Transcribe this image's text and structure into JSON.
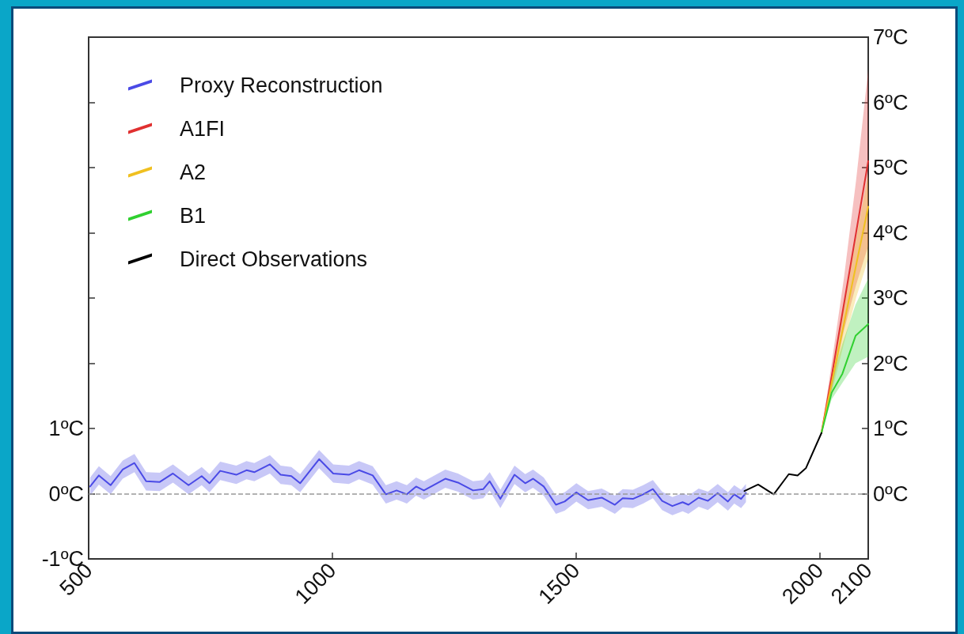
{
  "chart_data": {
    "type": "line",
    "xlim": [
      500,
      2100
    ],
    "xticks": [
      500,
      1000,
      1500,
      2000,
      2100
    ],
    "ylim": [
      -1,
      7
    ],
    "yticks": [
      {
        "value": -1,
        "label": "-1ºC"
      },
      {
        "value": 0,
        "label": "0ºC"
      },
      {
        "value": 1,
        "label": "1ºC"
      },
      {
        "value": 2,
        "label": null
      },
      {
        "value": 3,
        "label": null
      },
      {
        "value": 4,
        "label": null
      },
      {
        "value": 5,
        "label": null
      },
      {
        "value": 6,
        "label": null
      }
    ],
    "y2lim": [
      -1,
      7
    ],
    "y2ticks": [
      {
        "value": 0,
        "label": "0ºC"
      },
      {
        "value": 1,
        "label": "1ºC"
      },
      {
        "value": 2,
        "label": "2ºC"
      },
      {
        "value": 3,
        "label": "3ºC"
      },
      {
        "value": 4,
        "label": "4ºC"
      },
      {
        "value": 5,
        "label": "5ºC"
      },
      {
        "value": 6,
        "label": "6ºC"
      },
      {
        "value": 7,
        "label": "7ºC"
      }
    ],
    "grid": false,
    "legend": "top left",
    "marker": "none",
    "line_style": "solid",
    "ref_lines": [
      {
        "axis": "y",
        "value": 0,
        "color": "#999999",
        "line_style": "dashed"
      }
    ],
    "series": [
      {
        "name": "Proxy Reconstruction",
        "color": "#4a4ae6",
        "x": [
          503,
          521,
          545,
          570,
          594,
          618,
          646,
          673,
          705,
          732,
          748,
          770,
          803,
          824,
          840,
          872,
          894,
          916,
          934,
          973,
          1002,
          1034,
          1055,
          1083,
          1110,
          1132,
          1153,
          1172,
          1188,
          1232,
          1258,
          1289,
          1310,
          1323,
          1345,
          1374,
          1396,
          1412,
          1434,
          1459,
          1477,
          1501,
          1525,
          1553,
          1580,
          1596,
          1617,
          1638,
          1658,
          1677,
          1698,
          1719,
          1731,
          1752,
          1771,
          1791,
          1812,
          1825,
          1839,
          1849
        ],
        "values": [
          0.11,
          0.28,
          0.13,
          0.37,
          0.47,
          0.19,
          0.18,
          0.31,
          0.13,
          0.27,
          0.16,
          0.35,
          0.29,
          0.36,
          0.33,
          0.45,
          0.29,
          0.27,
          0.16,
          0.53,
          0.31,
          0.29,
          0.36,
          0.28,
          -0.01,
          0.05,
          -0.01,
          0.11,
          0.05,
          0.23,
          0.17,
          0.05,
          0.07,
          0.19,
          -0.08,
          0.29,
          0.16,
          0.23,
          0.11,
          -0.17,
          -0.12,
          0.02,
          -0.1,
          -0.06,
          -0.17,
          -0.07,
          -0.08,
          -0.01,
          0.07,
          -0.11,
          -0.19,
          -0.13,
          -0.17,
          -0.06,
          -0.11,
          0.01,
          -0.12,
          -0.01,
          -0.08,
          0.01
        ],
        "lower": [
          -0.03,
          0.14,
          -0.01,
          0.23,
          0.33,
          0.05,
          0.04,
          0.17,
          -0.01,
          0.13,
          0.02,
          0.21,
          0.15,
          0.22,
          0.19,
          0.31,
          0.15,
          0.13,
          0.02,
          0.39,
          0.17,
          0.15,
          0.22,
          0.14,
          -0.15,
          -0.09,
          -0.15,
          -0.03,
          -0.09,
          0.09,
          0.03,
          -0.09,
          -0.07,
          0.05,
          -0.22,
          0.15,
          0.02,
          0.09,
          -0.03,
          -0.31,
          -0.26,
          -0.12,
          -0.24,
          -0.2,
          -0.31,
          -0.21,
          -0.22,
          -0.15,
          -0.07,
          -0.25,
          -0.33,
          -0.27,
          -0.31,
          -0.2,
          -0.25,
          -0.13,
          -0.26,
          -0.15,
          -0.22,
          -0.13
        ],
        "upper": [
          0.25,
          0.42,
          0.27,
          0.51,
          0.61,
          0.33,
          0.32,
          0.45,
          0.27,
          0.41,
          0.3,
          0.49,
          0.43,
          0.5,
          0.47,
          0.59,
          0.43,
          0.41,
          0.3,
          0.67,
          0.45,
          0.43,
          0.5,
          0.42,
          0.13,
          0.19,
          0.13,
          0.25,
          0.19,
          0.37,
          0.31,
          0.19,
          0.21,
          0.33,
          0.06,
          0.43,
          0.3,
          0.37,
          0.25,
          -0.03,
          0.02,
          0.16,
          0.04,
          0.08,
          -0.03,
          0.07,
          0.06,
          0.13,
          0.21,
          0.03,
          -0.05,
          0.01,
          -0.03,
          0.08,
          0.03,
          0.15,
          0.02,
          0.13,
          0.06,
          0.15
        ]
      },
      {
        "name": "A1FI",
        "color": "#e03030",
        "x": [
          2004,
          2025,
          2050,
          2075,
          2100
        ],
        "values": [
          0.93,
          1.8,
          2.9,
          4.0,
          5.1
        ],
        "lower": [
          0.93,
          1.6,
          2.5,
          3.2,
          3.8
        ],
        "upper": [
          0.93,
          2.0,
          3.3,
          4.8,
          6.5
        ]
      },
      {
        "name": "A2",
        "color": "#f0c020",
        "x": [
          2004,
          2025,
          2050,
          2075,
          2100
        ],
        "values": [
          0.93,
          1.7,
          2.6,
          3.5,
          4.4
        ],
        "lower": [
          0.93,
          1.55,
          2.3,
          3.0,
          3.6
        ],
        "upper": [
          0.93,
          1.85,
          2.9,
          3.9,
          4.9
        ]
      },
      {
        "name": "B1",
        "color": "#30d030",
        "x": [
          2004,
          2025,
          2047,
          2074,
          2100
        ],
        "values": [
          0.93,
          1.55,
          1.84,
          2.42,
          2.6
        ],
        "lower": [
          0.93,
          1.45,
          1.7,
          2.0,
          2.1
        ],
        "upper": [
          0.93,
          1.75,
          2.3,
          2.9,
          3.3
        ]
      },
      {
        "name": "Direct Observations",
        "color": "#000000",
        "x": [
          1846,
          1874,
          1906,
          1937,
          1955,
          1972,
          2004
        ],
        "values": [
          0.04,
          0.14,
          -0.01,
          0.3,
          0.28,
          0.39,
          0.93
        ]
      }
    ]
  }
}
